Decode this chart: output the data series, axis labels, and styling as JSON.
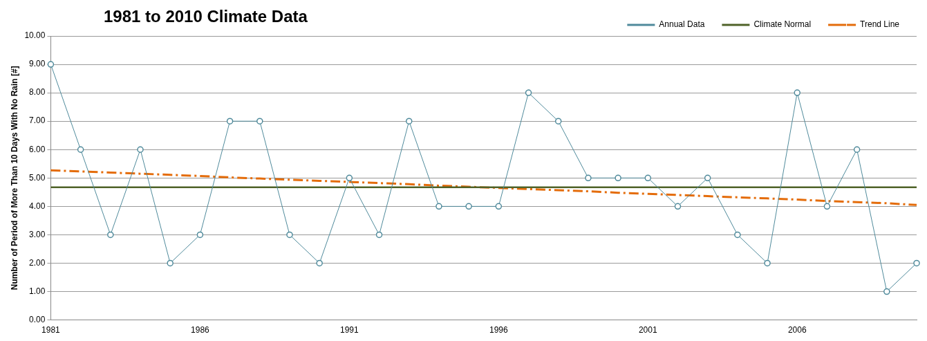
{
  "chart_data": {
    "type": "line",
    "title": "1981 to 2010 Climate Data",
    "ylabel": "Number of Period of More Than 10 Days With No Rain [#]",
    "categories": [
      "1981",
      null,
      null,
      null,
      null,
      "1986",
      null,
      null,
      null,
      null,
      "1991",
      null,
      null,
      null,
      null,
      "1996",
      null,
      null,
      null,
      null,
      "2001",
      null,
      null,
      null,
      null,
      "2006",
      null,
      null,
      null,
      null
    ],
    "series": [
      {
        "name": "Annual Data",
        "color": "#4f8a9b",
        "marker": "circle",
        "values": [
          9,
          6,
          3,
          6,
          2,
          3,
          7,
          7,
          3,
          2,
          5,
          3,
          7,
          4,
          4,
          4,
          8,
          7,
          5,
          5,
          5,
          4,
          5,
          3,
          2,
          8,
          4,
          6,
          1,
          2
        ]
      },
      {
        "name": "Climate Normal",
        "color": "#4f6228",
        "marker": "none",
        "values": [
          4.67,
          4.67,
          4.67,
          4.67,
          4.67,
          4.67,
          4.67,
          4.67,
          4.67,
          4.67,
          4.67,
          4.67,
          4.67,
          4.67,
          4.67,
          4.67,
          4.67,
          4.67,
          4.67,
          4.67,
          4.67,
          4.67,
          4.67,
          4.67,
          4.67,
          4.67,
          4.67,
          4.67,
          4.67,
          4.67
        ]
      },
      {
        "name": "Trend Line",
        "color": "#e46c0a",
        "marker": "none",
        "line_style": "dashed",
        "values": [
          5.27,
          5.23,
          5.19,
          5.15,
          5.11,
          5.07,
          5.02,
          4.98,
          4.94,
          4.9,
          4.86,
          4.82,
          4.78,
          4.73,
          4.69,
          4.65,
          4.61,
          4.57,
          4.53,
          4.48,
          4.44,
          4.4,
          4.36,
          4.32,
          4.28,
          4.24,
          4.19,
          4.15,
          4.11,
          4.05
        ]
      }
    ],
    "ylim": [
      0,
      10
    ],
    "yticks": [
      {
        "value": 0,
        "label": "0.00"
      },
      {
        "value": 1,
        "label": "1.00"
      },
      {
        "value": 2,
        "label": "2.00"
      },
      {
        "value": 3,
        "label": "3.00"
      },
      {
        "value": 4,
        "label": "4.00"
      },
      {
        "value": 5,
        "label": "5.00"
      },
      {
        "value": 6,
        "label": "6.00"
      },
      {
        "value": 7,
        "label": "7.00"
      },
      {
        "value": 8,
        "label": "8.00"
      },
      {
        "value": 9,
        "label": "9.00"
      },
      {
        "value": 10,
        "label": "10.00"
      }
    ],
    "grid": "y",
    "legend": "top right"
  }
}
